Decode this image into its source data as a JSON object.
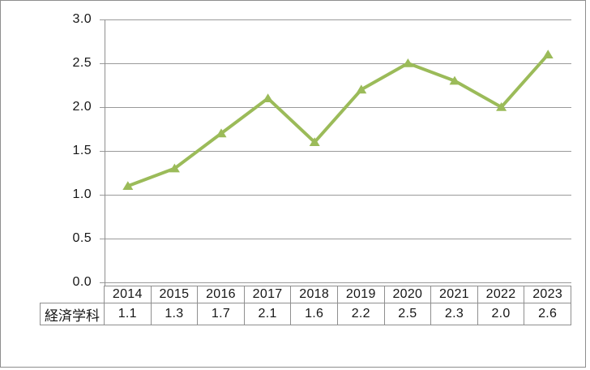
{
  "chart_data": {
    "type": "line",
    "title": "",
    "xlabel": "",
    "ylabel": "",
    "categories": [
      "2014",
      "2015",
      "2016",
      "2017",
      "2018",
      "2019",
      "2020",
      "2021",
      "2022",
      "2023"
    ],
    "series": [
      {
        "name": "経済学科",
        "values": [
          1.1,
          1.3,
          1.7,
          2.1,
          1.6,
          2.2,
          2.5,
          2.3,
          2.0,
          2.6
        ],
        "value_labels": [
          "1.1",
          "1.3",
          "1.7",
          "2.1",
          "1.6",
          "2.2",
          "2.5",
          "2.3",
          "2.0",
          "2.6"
        ],
        "color": "#9bbb59",
        "marker": "triangle"
      }
    ],
    "ylim": [
      0,
      3
    ],
    "ytick_labels": [
      "3.0",
      "2.5",
      "2.0",
      "1.5",
      "1.0",
      "0.5",
      "0.0"
    ],
    "grid": true,
    "legend_position": "data-table",
    "colors": {
      "line": "#9bbb59",
      "gridline": "#9a9a9a",
      "axis": "#8f8f8f",
      "table_border": "#8f8f8f",
      "chart_border": "#8e8e8e",
      "text": "#161616",
      "background": "#ffffff"
    }
  }
}
